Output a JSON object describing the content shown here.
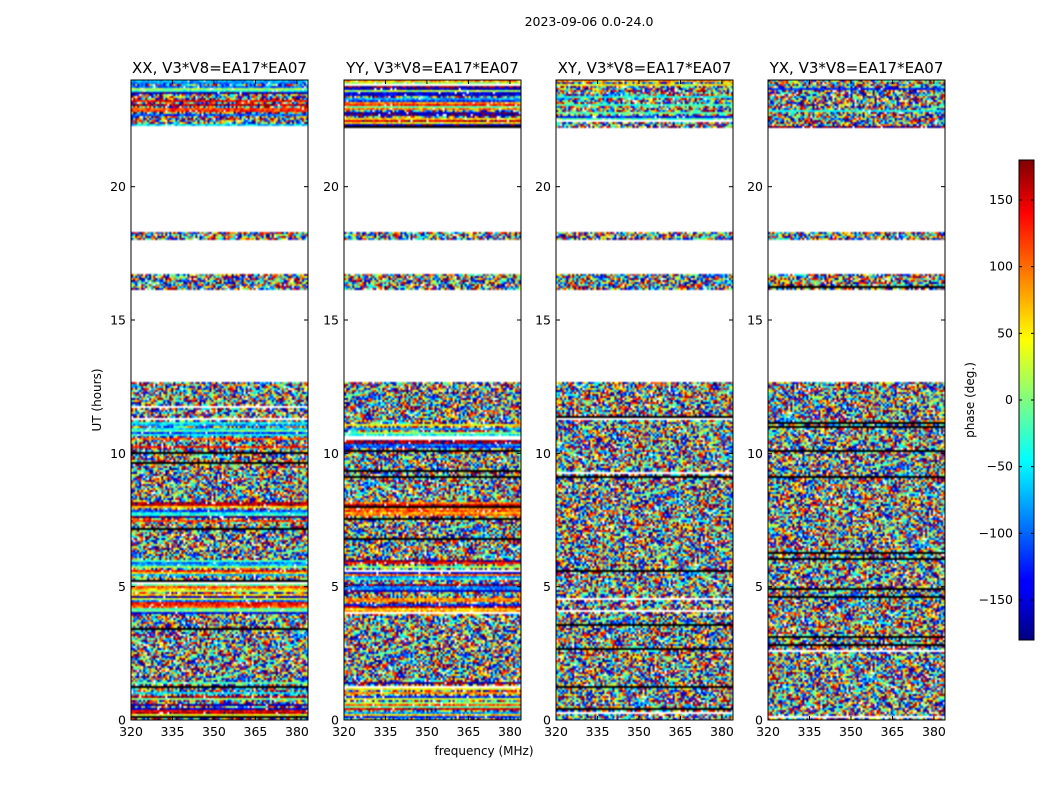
{
  "figure": {
    "suptitle": "2023-09-06 0.0-24.0",
    "xlabel": "frequency (MHz)",
    "ylabel": "UT (hours)"
  },
  "colorbar": {
    "label": "phase (deg.)",
    "ticks": [
      150,
      100,
      50,
      0,
      -50,
      -100,
      -150
    ],
    "tick_labels": [
      "150",
      "100",
      "50",
      "0",
      "−50",
      "−100",
      "−150"
    ],
    "range": [
      -180,
      180
    ],
    "colormap": "jet",
    "colors": [
      "#00007f",
      "#0000ff",
      "#007fff",
      "#00ffff",
      "#7fff7f",
      "#ffff00",
      "#ff7f00",
      "#ff0000",
      "#7f0000"
    ]
  },
  "chart_data": {
    "type": "heatmap",
    "value": "visibility phase (deg.)",
    "x_ticks": [
      320,
      335,
      350,
      365,
      380
    ],
    "x_tick_labels": [
      "320",
      "335",
      "350",
      "365",
      "380"
    ],
    "xlim": [
      320,
      384
    ],
    "y_ticks": [
      0,
      5,
      10,
      15,
      20
    ],
    "y_tick_labels": [
      "0",
      "5",
      "10",
      "15",
      "20"
    ],
    "ylim": [
      0,
      24
    ],
    "empty_utc_ranges": [
      [
        12.7,
        16.1
      ],
      [
        16.7,
        18.0
      ],
      [
        18.3,
        22.2
      ]
    ],
    "data_bands": [
      {
        "from": 0.0,
        "to": 12.7,
        "character": "noisy, many flagged rows"
      },
      {
        "from": 16.1,
        "to": 16.7,
        "character": "noisy"
      },
      {
        "from": 18.0,
        "to": 18.3,
        "character": "noisy"
      },
      {
        "from": 22.2,
        "to": 24.0,
        "character": "structured (XX/YY), noisy (XY/YX)"
      }
    ],
    "panels": [
      {
        "title": "XX, V3*V8=EA17*EA07",
        "character": "strong coherent phase bands (red/blue stripes) near 22-24 h, 4-6 h and 10-11 h"
      },
      {
        "title": "YY, V3*V8=EA17*EA07",
        "character": "coherent phase bands near 22-24 h, cyan/green band near 5 h and 8 h"
      },
      {
        "title": "XY, V3*V8=EA17*EA07",
        "character": "mostly random phase noise"
      },
      {
        "title": "YX, V3*V8=EA17*EA07",
        "character": "mostly random phase noise"
      }
    ]
  }
}
